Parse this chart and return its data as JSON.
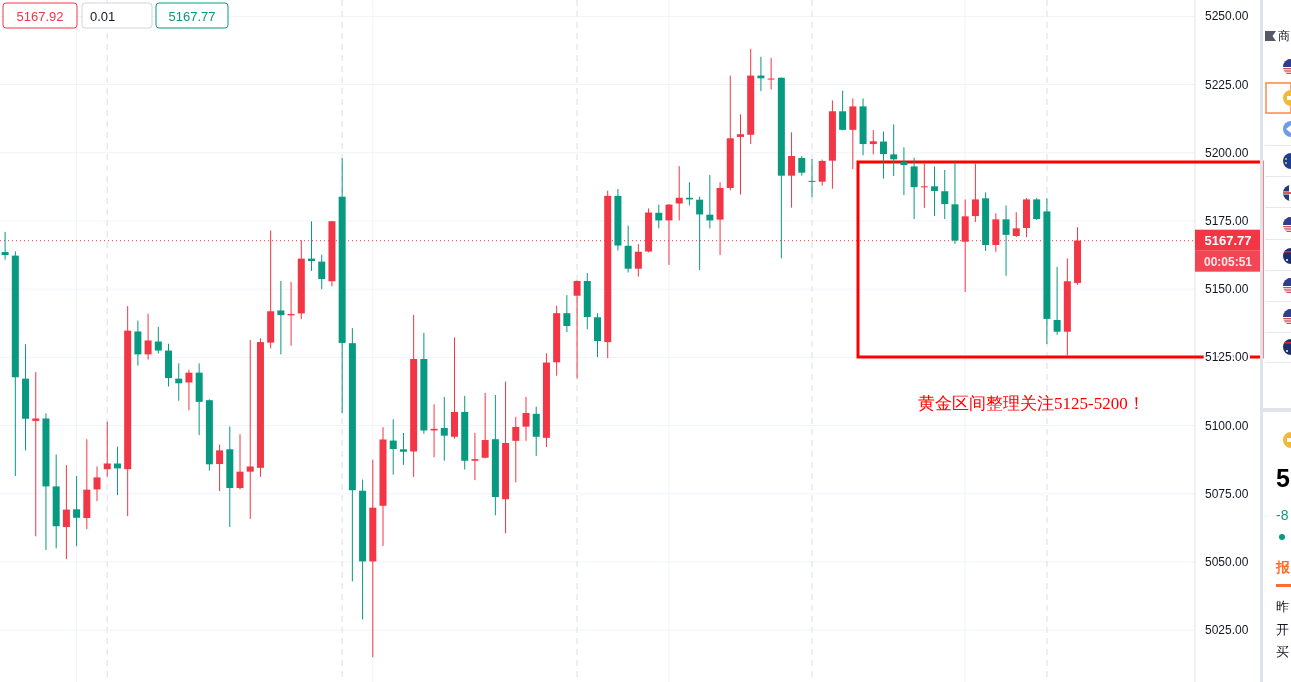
{
  "chart_data": [
    {
      "type": "candlestick",
      "categories": [
        null,
        null,
        null,
        null,
        null,
        null,
        null,
        null,
        null,
        null,
        null,
        null,
        null,
        null,
        null,
        null,
        null,
        null,
        null,
        null,
        null,
        null,
        null,
        null,
        null,
        null,
        null,
        null,
        null,
        null,
        null,
        null,
        null,
        null,
        null,
        null,
        null,
        null,
        null,
        null,
        null,
        null,
        null,
        null,
        null,
        null,
        null,
        null,
        null,
        null,
        null,
        null,
        null,
        null,
        null,
        null,
        null,
        null,
        null,
        null,
        null,
        null,
        null,
        null,
        null,
        null,
        null,
        null,
        null,
        null,
        null,
        null,
        null,
        null,
        null,
        null,
        null,
        null,
        null,
        null,
        null,
        null,
        null,
        null,
        null,
        null,
        null,
        null,
        null,
        null,
        null,
        null,
        null,
        null,
        null,
        null,
        null,
        null,
        null,
        null,
        null,
        null,
        null,
        null,
        null,
        null,
        null,
        null,
        null,
        null,
        null,
        null,
        null,
        null,
        null,
        null,
        null
      ],
      "ohlc": [
        [
          5163.6,
          5171.0,
          5160.8,
          5162.5
        ],
        [
          5162.3,
          5163.9,
          5081.5,
          5117.7
        ],
        [
          5117.2,
          5129.8,
          5090.9,
          5102.5
        ],
        [
          5101.7,
          5119.6,
          5059.4,
          5102.6
        ],
        [
          5102.6,
          5104.5,
          5054.4,
          5077.7
        ],
        [
          5077.7,
          5089.4,
          5055.0,
          5063.1
        ],
        [
          5062.8,
          5085.5,
          5051.0,
          5069.2
        ],
        [
          5069.3,
          5081.5,
          5055.8,
          5066.2
        ],
        [
          5066.1,
          5095.0,
          5062.0,
          5076.5
        ],
        [
          5076.6,
          5085.0,
          5072.3,
          5081.0
        ],
        [
          5084.0,
          5101.4,
          5081.3,
          5086.1
        ],
        [
          5086.1,
          5092.3,
          5074.5,
          5084.3
        ],
        [
          5084.0,
          5143.8,
          5066.8,
          5134.8
        ],
        [
          5134.5,
          5138.5,
          5122.0,
          5126.1
        ],
        [
          5126.1,
          5141.0,
          5124.2,
          5131.2
        ],
        [
          5130.8,
          5136.2,
          5126.4,
          5127.5
        ],
        [
          5127.5,
          5130.0,
          5114.3,
          5117.4
        ],
        [
          5117.2,
          5122.8,
          5109.1,
          5115.5
        ],
        [
          5115.8,
          5120.5,
          5105.6,
          5119.4
        ],
        [
          5119.4,
          5122.8,
          5096.5,
          5108.7
        ],
        [
          5109.3,
          5109.6,
          5083.5,
          5085.8
        ],
        [
          5085.9,
          5093.0,
          5076.0,
          5090.9
        ],
        [
          5091.3,
          5099.7,
          5062.8,
          5077.1
        ],
        [
          5077.1,
          5096.8,
          5076.6,
          5083.1
        ],
        [
          5083.1,
          5131.4,
          5065.8,
          5085.0
        ],
        [
          5084.5,
          5132.0,
          5081.2,
          5130.6
        ],
        [
          5130.4,
          5171.5,
          5128.3,
          5141.9
        ],
        [
          5142.2,
          5153.0,
          5126.1,
          5140.5
        ],
        [
          5140.4,
          5152.7,
          5129.3,
          5140.9
        ],
        [
          5141.1,
          5167.9,
          5139.0,
          5161.2
        ],
        [
          5161.2,
          5174.9,
          5156.7,
          5160.3
        ],
        [
          5160.1,
          5162.6,
          5150.0,
          5153.7
        ],
        [
          5152.9,
          5175.0,
          5151.0,
          5174.9
        ],
        [
          5183.9,
          5198.0,
          5104.5,
          5130.3
        ],
        [
          5130.2,
          5135.7,
          5042.9,
          5076.3
        ],
        [
          5076.1,
          5080.2,
          5028.9,
          5050.2
        ],
        [
          5050.2,
          5087.5,
          5015.1,
          5069.9
        ],
        [
          5070.6,
          5099.4,
          5055.9,
          5094.9
        ],
        [
          5094.5,
          5102.3,
          5082.0,
          5091.4
        ],
        [
          5091.3,
          5097.3,
          5085.6,
          5090.4
        ],
        [
          5090.5,
          5140.6,
          5081.2,
          5124.4
        ],
        [
          5124.4,
          5134.0,
          5097.0,
          5098.2
        ],
        [
          5098.2,
          5107.8,
          5088.4,
          5098.8
        ],
        [
          5099.1,
          5110.5,
          5087.1,
          5096.3
        ],
        [
          5095.9,
          5132.3,
          5095.2,
          5105.0
        ],
        [
          5105.0,
          5110.9,
          5083.9,
          5087.1
        ],
        [
          5087.1,
          5097.3,
          5080.0,
          5087.7
        ],
        [
          5088.2,
          5112.0,
          5088.0,
          5094.7
        ],
        [
          5095.0,
          5111.2,
          5067.1,
          5073.8
        ],
        [
          5073.0,
          5116.1,
          5060.5,
          5093.6
        ],
        [
          5094.4,
          5103.2,
          5079.2,
          5099.5
        ],
        [
          5099.6,
          5110.5,
          5094.4,
          5104.6
        ],
        [
          5104.3,
          5106.9,
          5088.9,
          5095.9
        ],
        [
          5095.5,
          5126.5,
          5092.1,
          5123.1
        ],
        [
          5123.2,
          5143.9,
          5118.3,
          5141.2
        ],
        [
          5141.2,
          5147.8,
          5134.3,
          5136.5
        ],
        [
          5147.6,
          5153.2,
          5117.3,
          5153.0
        ],
        [
          5153.0,
          5155.9,
          5135.3,
          5139.8
        ],
        [
          5139.7,
          5141.2,
          5125.1,
          5131.0
        ],
        [
          5130.6,
          5186.1,
          5124.7,
          5184.2
        ],
        [
          5184.2,
          5186.7,
          5164.2,
          5166.0
        ],
        [
          5165.9,
          5173.3,
          5156.1,
          5157.5
        ],
        [
          5157.5,
          5166.5,
          5154.6,
          5163.7
        ],
        [
          5163.8,
          5179.6,
          5163.5,
          5178.1
        ],
        [
          5178.0,
          5181.0,
          5172.3,
          5175.2
        ],
        [
          5175.2,
          5181.2,
          5158.9,
          5181.0
        ],
        [
          5181.4,
          5195.1,
          5175.2,
          5183.5
        ],
        [
          5183.5,
          5189.2,
          5180.7,
          5182.9
        ],
        [
          5182.8,
          5183.9,
          5157.0,
          5177.4
        ],
        [
          5177.3,
          5191.9,
          5172.3,
          5175.2
        ],
        [
          5175.5,
          5189.2,
          5162.5,
          5187.1
        ],
        [
          5187.1,
          5228.3,
          5186.2,
          5205.3
        ],
        [
          5205.8,
          5214.1,
          5184.7,
          5206.8
        ],
        [
          5206.6,
          5238.1,
          5203.2,
          5228.3
        ],
        [
          5228.3,
          5235.2,
          5222.6,
          5227.3
        ],
        [
          5227.0,
          5234.8,
          5223.2,
          5227.2
        ],
        [
          5227.5,
          5227.6,
          5161.3,
          5191.6
        ],
        [
          5191.6,
          5207.5,
          5179.9,
          5198.8
        ],
        [
          5198.1,
          5198.8,
          5191.6,
          5192.7
        ],
        [
          5189.7,
          5197.7,
          5183.6,
          5189.4
        ],
        [
          5189.4,
          5197.5,
          5187.9,
          5197.0
        ],
        [
          5197.1,
          5219.2,
          5186.8,
          5215.2
        ],
        [
          5215.2,
          5222.8,
          5208.2,
          5208.4
        ],
        [
          5208.4,
          5219.9,
          5194.0,
          5217.0
        ],
        [
          5217.0,
          5219.9,
          5199.1,
          5203.2
        ],
        [
          5203.2,
          5208.3,
          5199.4,
          5204.2
        ],
        [
          5204.1,
          5207.8,
          5190.5,
          5199.5
        ],
        [
          5199.4,
          5210.4,
          5191.5,
          5197.6
        ],
        [
          5196.6,
          5202.0,
          5184.5,
          5195.5
        ],
        [
          5195.0,
          5198.2,
          5175.7,
          5187.4
        ],
        [
          5187.4,
          5196.6,
          5179.8,
          5187.7
        ],
        [
          5187.7,
          5195.0,
          5176.8,
          5186.0
        ],
        [
          5185.9,
          5193.7,
          5175.7,
          5181.2
        ],
        [
          5181.1,
          5196.6,
          5166.6,
          5167.8
        ],
        [
          5167.4,
          5182.9,
          5149.0,
          5176.7
        ],
        [
          5176.8,
          5196.1,
          5174.6,
          5182.9
        ],
        [
          5183.3,
          5185.5,
          5164.0,
          5166.2
        ],
        [
          5166.2,
          5177.8,
          5163.7,
          5175.6
        ],
        [
          5175.6,
          5180.7,
          5154.9,
          5169.9
        ],
        [
          5169.5,
          5178.2,
          5169.1,
          5172.3
        ],
        [
          5172.4,
          5183.4,
          5169.1,
          5182.9
        ],
        [
          5182.9,
          5183.4,
          5175.4,
          5175.7
        ],
        [
          5178.5,
          5183.3,
          5129.9,
          5139.1
        ],
        [
          5138.7,
          5158.2,
          5133.3,
          5134.4
        ],
        [
          5134.4,
          5161.3,
          5125.6,
          5152.9
        ],
        [
          5152.3,
          5172.7,
          5151.6,
          5167.8
        ],
        null,
        null,
        null,
        null,
        null,
        null,
        null,
        null,
        null,
        null,
        null
      ],
      "colors": [
        "#089981",
        "#089981",
        "#089981",
        "#f23645",
        "#089981",
        "#089981",
        "#f23645",
        "#089981",
        "#f23645",
        "#f23645",
        "#f23645",
        "#089981",
        "#f23645",
        "#089981",
        "#f23645",
        "#089981",
        "#089981",
        "#089981",
        "#f23645",
        "#089981",
        "#089981",
        "#f23645",
        "#089981",
        "#f23645",
        "#f23645",
        "#f23645",
        "#f23645",
        "#089981",
        "#f23645",
        "#f23645",
        "#089981",
        "#089981",
        "#f23645",
        "#089981",
        "#089981",
        "#089981",
        "#f23645",
        "#f23645",
        "#089981",
        "#089981",
        "#f23645",
        "#089981",
        "#f23645",
        "#089981",
        "#f23645",
        "#089981",
        "#f23645",
        "#f23645",
        "#089981",
        "#f23645",
        "#f23645",
        "#f23645",
        "#089981",
        "#f23645",
        "#f23645",
        "#089981",
        "#f23645",
        "#089981",
        "#089981",
        "#f23645",
        "#089981",
        "#089981",
        "#f23645",
        "#f23645",
        "#089981",
        "#f23645",
        "#f23645",
        "#089981",
        "#089981",
        "#089981",
        "#f23645",
        "#f23645",
        "#f23645",
        "#f23645",
        "#089981",
        "#f23645",
        "#089981",
        "#f23645",
        "#089981",
        "#089981",
        "#f23645",
        "#f23645",
        "#089981",
        "#f23645",
        "#089981",
        "#f23645",
        "#089981",
        "#089981",
        "#089981",
        "#089981",
        "#f23645",
        "#089981",
        "#089981",
        "#089981",
        "#f23645",
        "#f23645",
        "#089981",
        "#f23645",
        "#089981",
        "#f23645",
        "#f23645",
        "#089981",
        "#089981",
        "#089981",
        "#f23645",
        "#f23645",
        null,
        null,
        null,
        null,
        null,
        null,
        null,
        null,
        null,
        null,
        null
      ],
      "ylim": [
        5006,
        5256
      ],
      "yticks": [
        {
          "value": 5025,
          "label": "5025.00"
        },
        {
          "value": 5050,
          "label": "5050.00"
        },
        {
          "value": 5075,
          "label": "5075.00"
        },
        {
          "value": 5100,
          "label": "5100.00"
        },
        {
          "value": 5125,
          "label": "5125.00"
        },
        {
          "value": 5150,
          "label": "5150.00"
        },
        {
          "value": 5175,
          "label": "5175.00"
        },
        {
          "value": 5200,
          "label": "5200.00"
        },
        {
          "value": 5225,
          "label": "5225.00"
        },
        {
          "value": 5250,
          "label": "5250.00"
        }
      ],
      "tick_labels": "y",
      "grid": true,
      "ref_lines": [
        {
          "axis": "y",
          "value": 5167.77,
          "label": "5167.77",
          "color": "#f23645",
          "line_style": "dotted"
        }
      ],
      "annotations": [
        "5167.92",
        "0.01",
        "5167.77",
        "00:05:51",
        "黄金区间整理关注5125-5200！"
      ]
    },
    {
      "type": "other",
      "annotations": [
        "商",
        "5",
        "-8",
        "报",
        "昨",
        "开",
        "买"
      ]
    }
  ]
}
